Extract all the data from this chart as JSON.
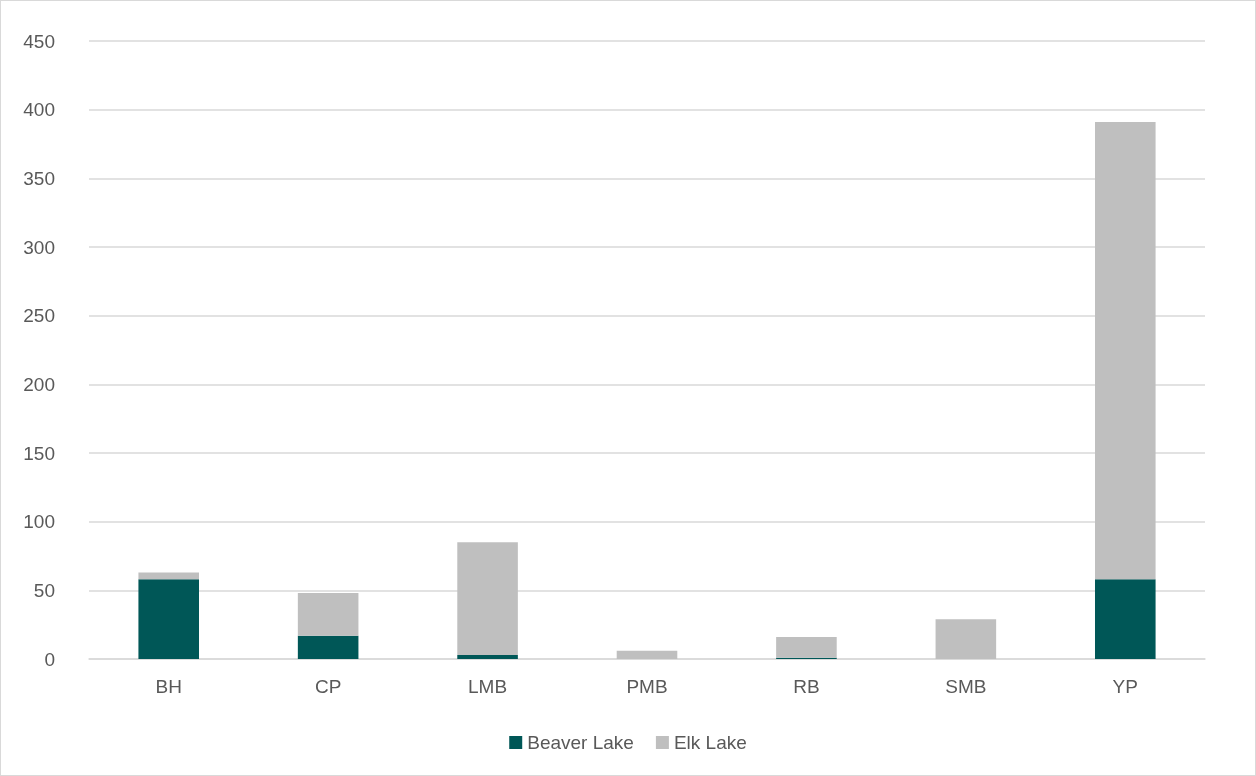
{
  "chart_data": {
    "type": "bar",
    "stacked": true,
    "categories": [
      "BH",
      "CP",
      "LMB",
      "PMB",
      "RB",
      "SMB",
      "YP"
    ],
    "series": [
      {
        "name": "Beaver Lake",
        "color": "#005757",
        "values": [
          58,
          17,
          3,
          0,
          1,
          0,
          58
        ]
      },
      {
        "name": "Elk Lake",
        "color": "#bfbfbf",
        "values": [
          5,
          31,
          82,
          6,
          15,
          29,
          333
        ]
      }
    ],
    "ylim": [
      0,
      450
    ],
    "yticks": [
      0,
      50,
      100,
      150,
      200,
      250,
      300,
      350,
      400,
      450
    ],
    "grid": "y",
    "legend": "bottom"
  }
}
